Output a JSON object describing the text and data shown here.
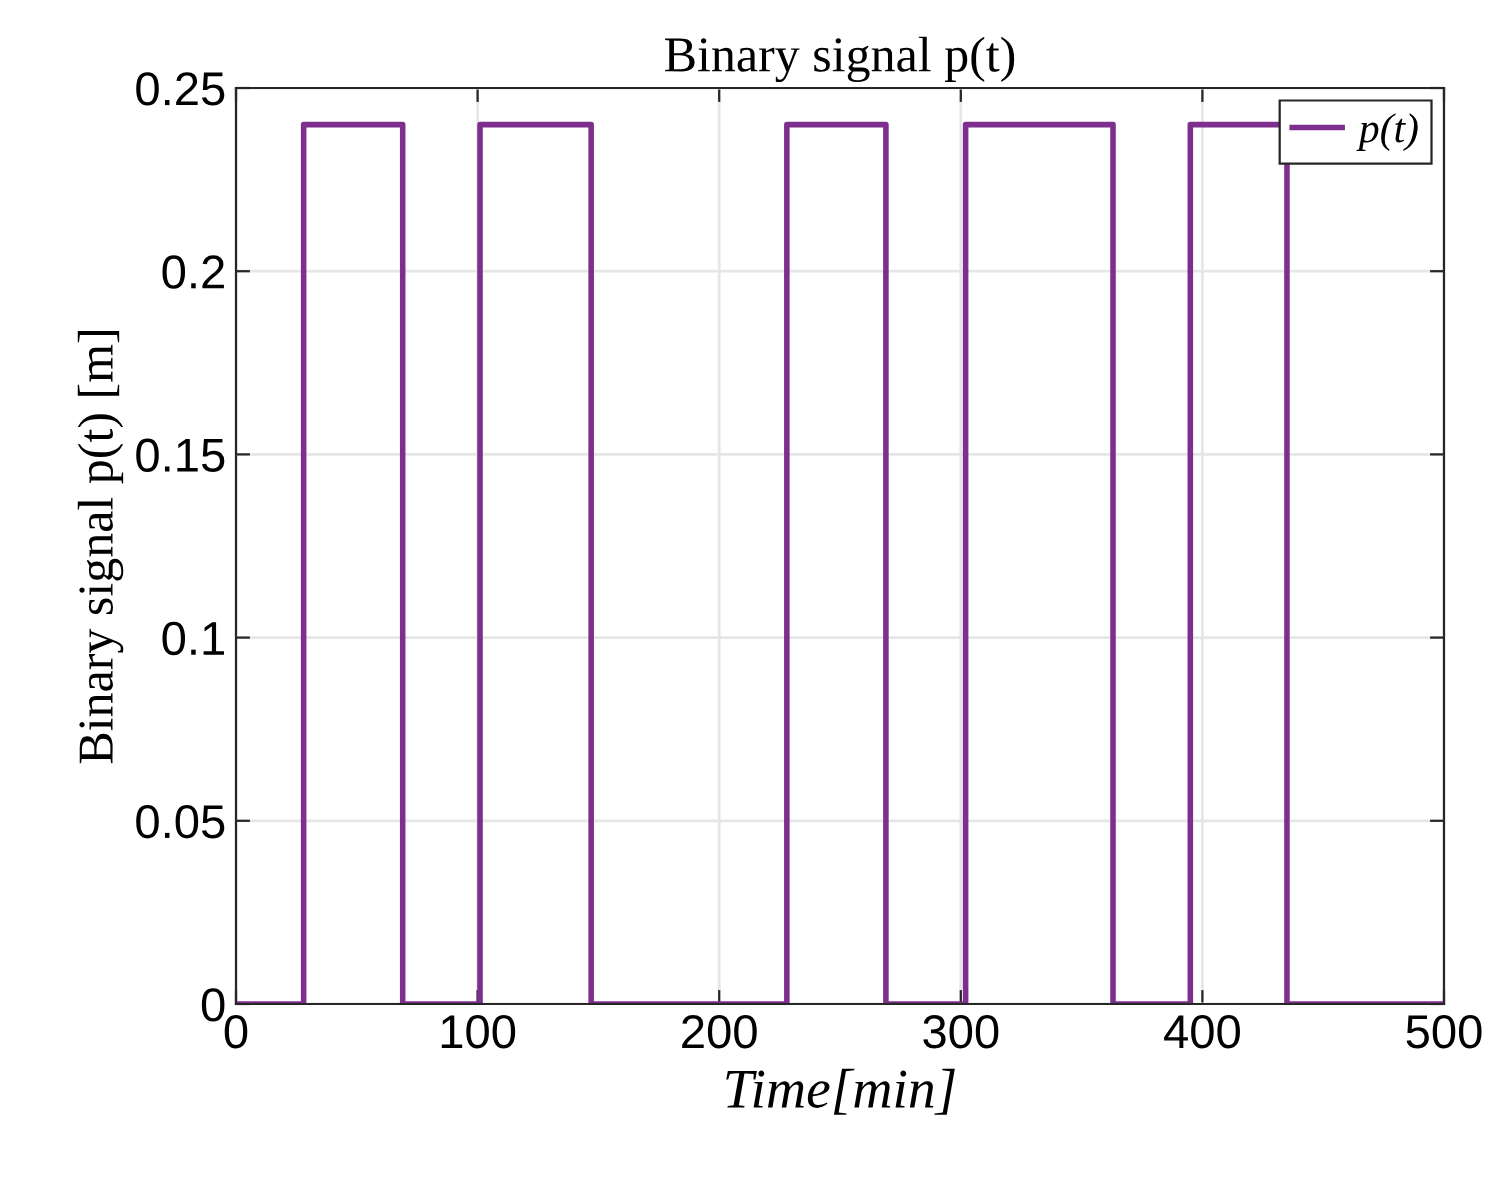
{
  "chart_data": {
    "type": "step",
    "title": "Binary signal p(t)",
    "xlabel": "Time[min]",
    "ylabel": "Binary signal p(t) [m]",
    "x": [
      0,
      28,
      69,
      101,
      147,
      228,
      269,
      302,
      363,
      395,
      435,
      500
    ],
    "series": [
      {
        "name": "p(t)",
        "color": "#7e2f8e",
        "values": [
          0,
          0.24,
          0,
          0.24,
          0,
          0.24,
          0,
          0.24,
          0,
          0.24,
          0,
          0
        ]
      }
    ],
    "xlim": [
      0,
      500
    ],
    "xticks": [
      0,
      100,
      200,
      300,
      400,
      500
    ],
    "ylim": [
      0,
      0.25
    ],
    "yticks": [
      0,
      0.05,
      0.1,
      0.15,
      0.2,
      0.25
    ],
    "grid": true,
    "legend": "top right",
    "line_style": "solid",
    "marker": "none"
  }
}
